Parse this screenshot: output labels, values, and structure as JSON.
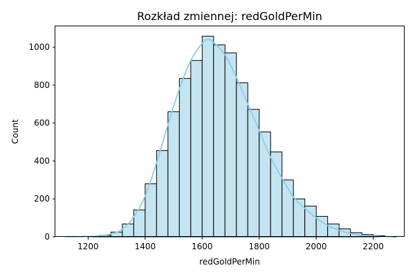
{
  "chart_data": {
    "type": "bar",
    "title": "Rozkład zmiennej: redGoldPerMin",
    "xlabel": "redGoldPerMin",
    "ylabel": "Count",
    "xlim": [
      1085,
      2310
    ],
    "ylim": [
      0,
      1110
    ],
    "x_ticks": [
      1200,
      1400,
      1600,
      1800,
      2000,
      2200
    ],
    "y_ticks": [
      0,
      200,
      400,
      600,
      800,
      1000
    ],
    "bin_edges": [
      1120,
      1160,
      1200,
      1240,
      1280,
      1320,
      1360,
      1400,
      1440,
      1480,
      1520,
      1560,
      1600,
      1640,
      1680,
      1720,
      1760,
      1800,
      1840,
      1880,
      1920,
      1960,
      2000,
      2040,
      2080,
      2120,
      2160,
      2200,
      2240,
      2280
    ],
    "values": [
      2,
      0,
      1,
      8,
      25,
      68,
      142,
      280,
      455,
      660,
      835,
      930,
      1058,
      1012,
      970,
      812,
      672,
      553,
      448,
      300,
      200,
      162,
      108,
      68,
      42,
      22,
      12,
      6,
      2
    ],
    "kde": {
      "x": [
        1120,
        1180,
        1240,
        1280,
        1320,
        1360,
        1400,
        1440,
        1480,
        1520,
        1560,
        1600,
        1620,
        1640,
        1680,
        1720,
        1760,
        1800,
        1840,
        1880,
        1920,
        1960,
        2000,
        2040,
        2080,
        2120,
        2160,
        2220,
        2270
      ],
      "y": [
        0,
        1,
        5,
        15,
        40,
        105,
        215,
        390,
        590,
        780,
        930,
        1020,
        1040,
        1025,
        960,
        840,
        700,
        560,
        420,
        310,
        210,
        150,
        100,
        60,
        35,
        18,
        8,
        2,
        0
      ]
    },
    "grid": false,
    "colors": {
      "bar_fill": "#c3e4f0",
      "bar_edge": "#000000",
      "kde_line": "#87ceeb"
    }
  }
}
